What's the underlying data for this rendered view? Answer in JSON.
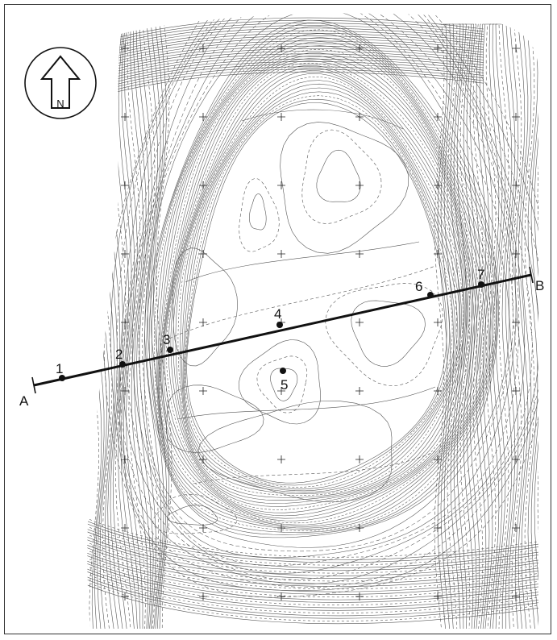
{
  "map": {
    "north_label": "N",
    "profile": {
      "start_label": "A",
      "end_label": "B",
      "points": [
        {
          "label": "1"
        },
        {
          "label": "2"
        },
        {
          "label": "3"
        },
        {
          "label": "4"
        },
        {
          "label": "5"
        },
        {
          "label": "6"
        },
        {
          "label": "7"
        }
      ]
    },
    "colors": {
      "ink": "#111111",
      "contour": "#555555",
      "background": "#ffffff"
    }
  }
}
